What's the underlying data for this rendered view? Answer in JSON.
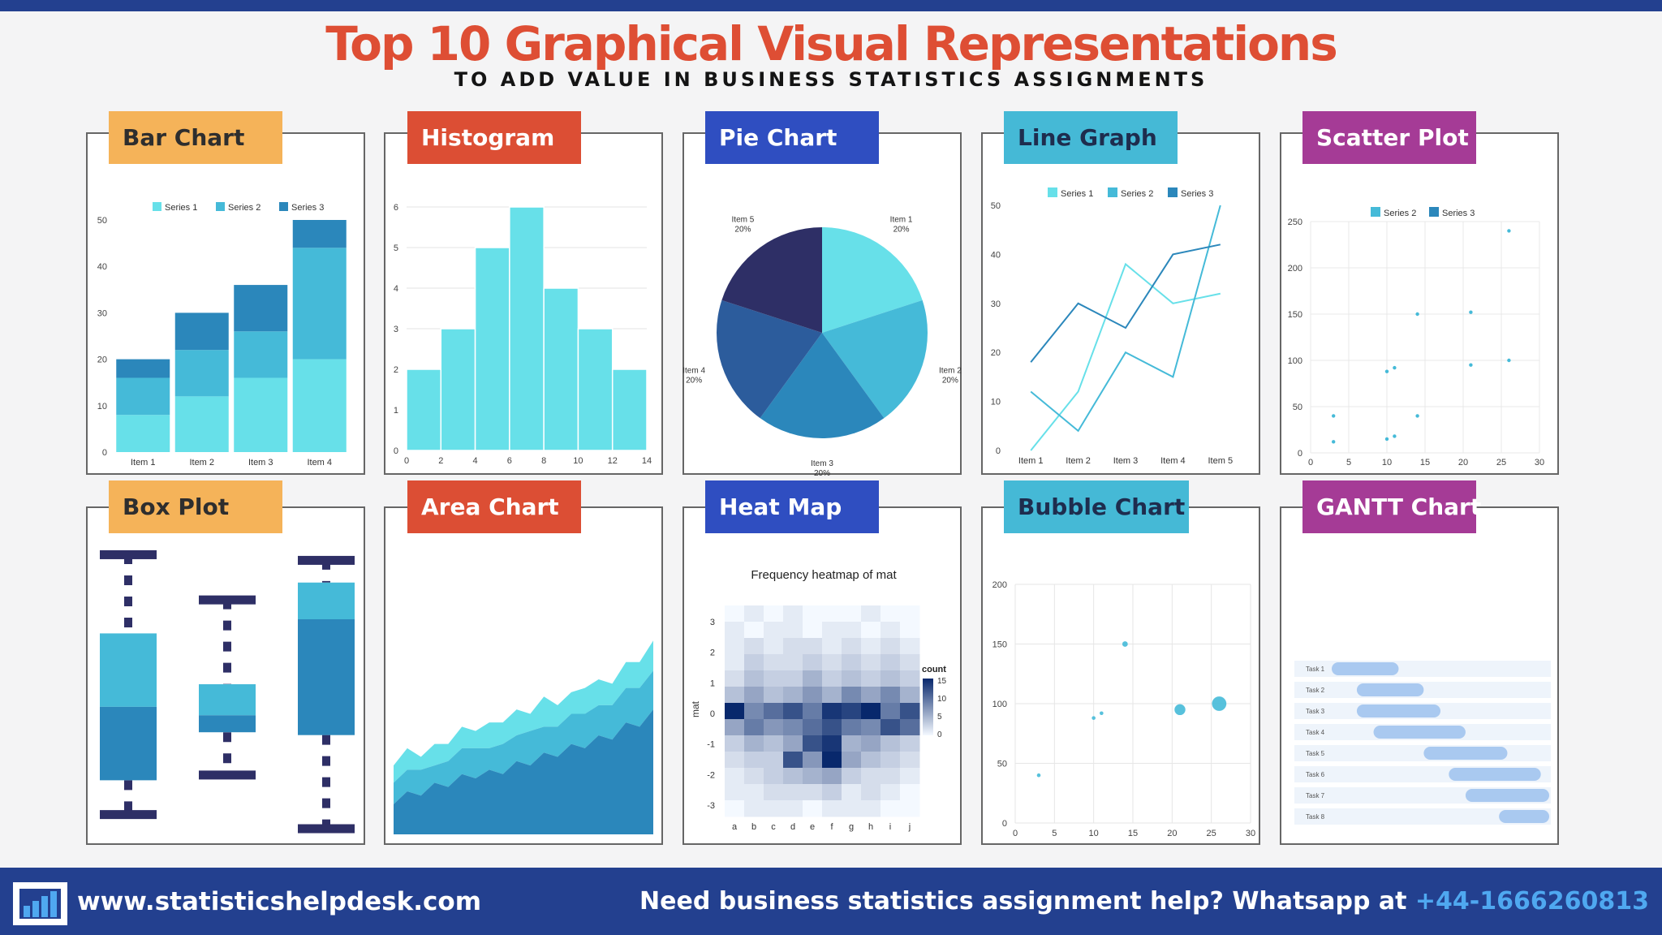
{
  "header": {
    "title": "Top 10 Graphical Visual Representations",
    "subtitle": "TO ADD VALUE IN BUSINESS STATISTICS ASSIGNMENTS"
  },
  "colors": {
    "light": "#67e0e9",
    "mid": "#45bad8",
    "dark": "#2b87bb",
    "navy": "#2e2f66",
    "blue": "#2c5c9c",
    "bar_text_dark": "#2e2e2e",
    "orange": "#f5b359",
    "red": "#dc4e34",
    "royal": "#2f4ec1",
    "cyan": "#45b9d6",
    "purple": "#a53b96"
  },
  "cards": {
    "bar": {
      "label": "Bar Chart"
    },
    "histogram": {
      "label": "Histogram"
    },
    "pie": {
      "label": "Pie Chart"
    },
    "line": {
      "label": "Line Graph"
    },
    "scatter": {
      "label": "Scatter Plot"
    },
    "box": {
      "label": "Box Plot"
    },
    "area": {
      "label": "Area Chart"
    },
    "heatmap": {
      "label": "Heat Map"
    },
    "bubble": {
      "label": "Bubble Chart"
    },
    "gantt": {
      "label": "GANTT Chart"
    }
  },
  "chart_data": [
    {
      "id": "bar",
      "type": "bar",
      "stacked": true,
      "categories": [
        "Item 1",
        "Item 2",
        "Item 3",
        "Item 4"
      ],
      "series": [
        {
          "name": "Series 1",
          "values": [
            8,
            12,
            16,
            20
          ]
        },
        {
          "name": "Series 2",
          "values": [
            8,
            10,
            10,
            24
          ]
        },
        {
          "name": "Series 3",
          "values": [
            4,
            8,
            10,
            6
          ]
        }
      ],
      "ylim": [
        0,
        50
      ],
      "yticks": [
        "0",
        "10",
        "20",
        "30",
        "40",
        "50"
      ]
    },
    {
      "id": "histogram",
      "type": "bar",
      "bins": [
        [
          0,
          2
        ],
        [
          2,
          4
        ],
        [
          4,
          6
        ],
        [
          6,
          8
        ],
        [
          8,
          10
        ],
        [
          10,
          12
        ],
        [
          12,
          14
        ]
      ],
      "values": [
        2,
        3,
        5,
        6,
        4,
        3,
        2
      ],
      "ylim": [
        0,
        6
      ],
      "yticks": [
        "0",
        "1",
        "2",
        "3",
        "4",
        "5",
        "6"
      ],
      "xticks": [
        "0",
        "2",
        "4",
        "6",
        "8",
        "10",
        "12",
        "14"
      ]
    },
    {
      "id": "pie",
      "type": "pie",
      "slices": [
        {
          "label": "Item 1",
          "pct": "20%",
          "value": 20
        },
        {
          "label": "Item 2",
          "pct": "20%",
          "value": 20
        },
        {
          "label": "Item 3",
          "pct": "20%",
          "value": 20
        },
        {
          "label": "Item 4",
          "pct": "20%",
          "value": 20
        },
        {
          "label": "Item 5",
          "pct": "20%",
          "value": 20
        }
      ]
    },
    {
      "id": "line",
      "type": "line",
      "categories": [
        "Item 1",
        "Item 2",
        "Item 3",
        "Item 4",
        "Item 5"
      ],
      "series": [
        {
          "name": "Series 1",
          "values": [
            0,
            12,
            38,
            30,
            32
          ]
        },
        {
          "name": "Series 2",
          "values": [
            12,
            4,
            20,
            15,
            50
          ]
        },
        {
          "name": "Series 3",
          "values": [
            18,
            30,
            25,
            40,
            42
          ]
        }
      ],
      "ylim": [
        0,
        50
      ],
      "yticks": [
        "0",
        "10",
        "20",
        "30",
        "40",
        "50"
      ]
    },
    {
      "id": "scatter",
      "type": "scatter",
      "series": [
        {
          "name": "Series 2",
          "points": [
            [
              3,
              40
            ],
            [
              3,
              12
            ],
            [
              10,
              88
            ],
            [
              10,
              15
            ],
            [
              11,
              18
            ],
            [
              11,
              92
            ],
            [
              14,
              150
            ],
            [
              14,
              40
            ],
            [
              21,
              95
            ],
            [
              21,
              152
            ],
            [
              26,
              240
            ],
            [
              26,
              100
            ]
          ]
        },
        {
          "name": "Series 3",
          "points": []
        }
      ],
      "xlim": [
        0,
        30
      ],
      "ylim": [
        0,
        250
      ],
      "xticks": [
        "0",
        "5",
        "10",
        "15",
        "20",
        "25",
        "30"
      ],
      "yticks": [
        "0",
        "50",
        "100",
        "150",
        "200",
        "250"
      ]
    },
    {
      "id": "box",
      "type": "box",
      "boxes": [
        {
          "min": 6,
          "q1": 18,
          "median": 44,
          "q3": 70,
          "max": 98
        },
        {
          "min": 20,
          "q1": 35,
          "median": 41,
          "q3": 52,
          "max": 82
        },
        {
          "min": 1,
          "q1": 34,
          "median": 75,
          "q3": 88,
          "max": 96
        }
      ]
    },
    {
      "id": "area",
      "type": "area",
      "stacked": true,
      "series": [
        {
          "name": "Layer 1",
          "values": [
            14,
            20,
            18,
            24,
            22,
            28,
            26,
            30,
            28,
            34,
            32,
            38,
            36,
            42,
            40,
            46,
            44,
            52,
            50,
            58
          ]
        },
        {
          "name": "Layer 2",
          "values": [
            10,
            10,
            12,
            8,
            12,
            12,
            14,
            10,
            14,
            12,
            16,
            12,
            14,
            14,
            16,
            14,
            16,
            16,
            18,
            18
          ]
        },
        {
          "name": "Layer 3",
          "values": [
            8,
            10,
            6,
            10,
            8,
            10,
            8,
            12,
            10,
            12,
            8,
            14,
            10,
            10,
            12,
            12,
            10,
            12,
            12,
            14
          ]
        }
      ],
      "ylim": [
        0,
        95
      ]
    },
    {
      "id": "heatmap",
      "type": "heatmap",
      "title": "Frequency heatmap of mat",
      "ylabel": "mat",
      "xcats": [
        "a",
        "b",
        "c",
        "d",
        "e",
        "f",
        "g",
        "h",
        "i",
        "j"
      ],
      "yticks": [
        "-3",
        "-2",
        "-1",
        "0",
        "1",
        "2",
        "3"
      ],
      "legend_title": "count",
      "legend_ticks": [
        "15",
        "10",
        "5",
        "0"
      ],
      "rows": [
        [
          0,
          1,
          0,
          1,
          0,
          0,
          0,
          1,
          0,
          0
        ],
        [
          1,
          0,
          1,
          1,
          0,
          1,
          1,
          0,
          1,
          0
        ],
        [
          1,
          2,
          1,
          2,
          2,
          1,
          2,
          1,
          2,
          1
        ],
        [
          1,
          3,
          2,
          2,
          3,
          2,
          3,
          2,
          3,
          2
        ],
        [
          2,
          4,
          3,
          3,
          5,
          3,
          4,
          3,
          4,
          3
        ],
        [
          4,
          6,
          4,
          5,
          7,
          5,
          8,
          6,
          8,
          5
        ],
        [
          15,
          8,
          10,
          12,
          9,
          14,
          13,
          15,
          9,
          12
        ],
        [
          6,
          9,
          7,
          8,
          10,
          12,
          9,
          8,
          12,
          10
        ],
        [
          3,
          5,
          4,
          6,
          12,
          14,
          5,
          6,
          4,
          3
        ],
        [
          2,
          3,
          3,
          12,
          7,
          15,
          6,
          4,
          3,
          2
        ],
        [
          1,
          2,
          3,
          4,
          5,
          6,
          3,
          2,
          2,
          1
        ],
        [
          1,
          1,
          2,
          2,
          2,
          3,
          1,
          2,
          1,
          0
        ],
        [
          0,
          1,
          1,
          1,
          0,
          1,
          1,
          1,
          0,
          0
        ]
      ]
    },
    {
      "id": "bubble",
      "type": "scatter",
      "points": [
        [
          3,
          40,
          1
        ],
        [
          10,
          88,
          1
        ],
        [
          11,
          92,
          1
        ],
        [
          14,
          150,
          2
        ],
        [
          21,
          95,
          5
        ],
        [
          26,
          100,
          7
        ]
      ],
      "xlim": [
        0,
        30
      ],
      "ylim": [
        0,
        200
      ],
      "xticks": [
        "0",
        "5",
        "10",
        "15",
        "20",
        "25",
        "30"
      ],
      "yticks": [
        "0",
        "50",
        "100",
        "150",
        "200"
      ]
    },
    {
      "id": "gantt",
      "type": "gantt",
      "tasks": [
        {
          "name": "Task 1",
          "start": 0,
          "end": 8
        },
        {
          "name": "Task 2",
          "start": 3,
          "end": 11
        },
        {
          "name": "Task 3",
          "start": 3,
          "end": 13
        },
        {
          "name": "Task 4",
          "start": 5,
          "end": 16
        },
        {
          "name": "Task 5",
          "start": 11,
          "end": 21
        },
        {
          "name": "Task 6",
          "start": 14,
          "end": 25
        },
        {
          "name": "Task 7",
          "start": 16,
          "end": 26
        },
        {
          "name": "Task 8",
          "start": 20,
          "end": 26
        }
      ],
      "xlim": [
        0,
        26
      ]
    }
  ],
  "footer": {
    "url": "www.statisticshelpdesk.com",
    "cta": "Need business statistics assignment help? Whatsapp at",
    "phone": "+44-1666260813",
    "logo_icon": "bar-chart-logo-icon"
  }
}
